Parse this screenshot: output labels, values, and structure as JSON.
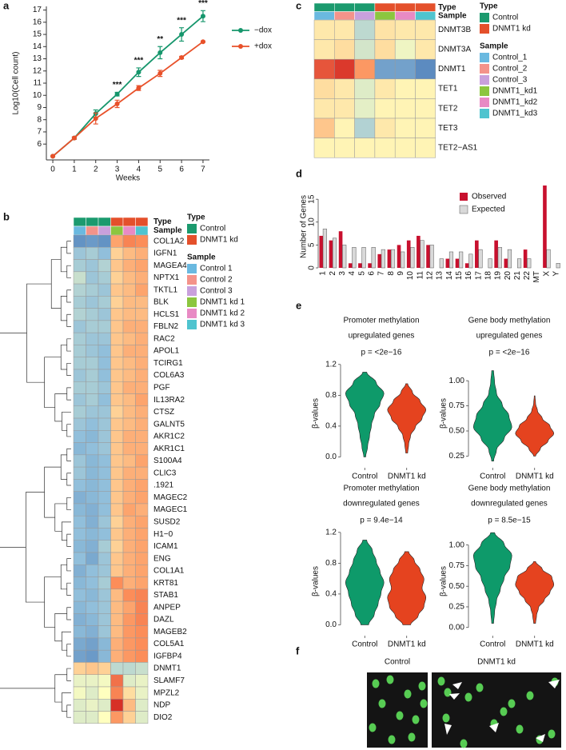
{
  "chart_data": [
    {
      "type": "line",
      "label": "a",
      "ylabel": "Log10(Cell count)",
      "xlabel": "Weeks",
      "x": [
        0,
        1,
        2,
        3,
        4,
        5,
        6,
        7
      ],
      "xlim": [
        -0.3,
        7.3
      ],
      "xticks": [
        0,
        1,
        2,
        3,
        4,
        5,
        6,
        7
      ],
      "ylim": [
        4.7,
        17.3
      ],
      "yticks": [
        6,
        7,
        8,
        9,
        10,
        11,
        12,
        13,
        14,
        15,
        16,
        17
      ],
      "series": [
        {
          "name": "−dox",
          "color": "#16966c",
          "values": [
            5.0,
            6.5,
            8.5,
            10.1,
            11.9,
            13.5,
            15.0,
            16.5
          ],
          "errors": [
            0,
            0.1,
            0.3,
            0.15,
            0.35,
            0.5,
            0.55,
            0.45
          ]
        },
        {
          "name": "+dox",
          "color": "#e8512a",
          "values": [
            5.0,
            6.5,
            8.1,
            9.3,
            10.6,
            11.8,
            13.1,
            14.4
          ],
          "errors": [
            0,
            0.1,
            0.45,
            0.3,
            0.2,
            0.25,
            0.1,
            0.05
          ]
        }
      ],
      "annotations": [
        {
          "x": 3,
          "text": "***"
        },
        {
          "x": 4,
          "text": "***"
        },
        {
          "x": 5,
          "text": "**"
        },
        {
          "x": 6,
          "text": "***"
        },
        {
          "x": 7,
          "text": "***"
        }
      ]
    },
    {
      "type": "heatmap",
      "label": "b",
      "annotation_titles": [
        "Type",
        "Sample"
      ],
      "types": [
        {
          "name": "Control",
          "color": "#1b9a6e"
        },
        {
          "name": "DNMT1 kd",
          "color": "#e4502b"
        }
      ],
      "samples": [
        {
          "name": "Control 1",
          "color": "#6ab9e0"
        },
        {
          "name": "Control 2",
          "color": "#f4938a"
        },
        {
          "name": "Control 3",
          "color": "#c9a0dc"
        },
        {
          "name": "DNMT1 kd 1",
          "color": "#8cc63f"
        },
        {
          "name": "DNMT1 kd 2",
          "color": "#e88ac4"
        },
        {
          "name": "DNMT1 kd 3",
          "color": "#4fc4cf"
        }
      ],
      "genes": [
        "COL1A2",
        "IGFN1",
        "MAGEA4",
        "NPTX1",
        "TKTL1",
        "BLK",
        "HCLS1",
        "FBLN2",
        "RAC2",
        "APOL1",
        "TCIRG1",
        "COL6A3",
        "PGF",
        "IL13RA2",
        "CTSZ",
        "GALNT5",
        "AKR1C2",
        "AKR1C1",
        "S100A4",
        "CLIC3",
        ".1921",
        "MAGEC2",
        "MAGEC1",
        "SUSD2",
        "H1−0",
        "ICAM1",
        "ENG",
        "COL1A1",
        "KRT81",
        "STAB1",
        "ANPEP",
        "DAZL",
        "MAGEB2",
        "COL5A1",
        "IGFBP4",
        "DNMT1",
        "SLAMF7",
        "MPZL2",
        "NDP",
        "DIO2"
      ],
      "values": [
        [
          -1.6,
          -1.5,
          -1.6,
          0.8,
          1.1,
          1.0
        ],
        [
          -0.9,
          -0.8,
          -1.0,
          0.4,
          0.6,
          0.7
        ],
        [
          -0.8,
          -0.9,
          -0.7,
          0.5,
          0.7,
          0.8
        ],
        [
          -0.5,
          -0.9,
          -0.8,
          0.4,
          0.6,
          0.7
        ],
        [
          -0.7,
          -0.8,
          -0.9,
          0.5,
          0.6,
          0.8
        ],
        [
          -0.8,
          -0.9,
          -0.8,
          0.4,
          0.6,
          0.6
        ],
        [
          -0.7,
          -0.8,
          -0.9,
          0.5,
          0.6,
          0.6
        ],
        [
          -0.9,
          -0.8,
          -0.8,
          0.5,
          0.7,
          0.7
        ],
        [
          -0.8,
          -0.9,
          -0.9,
          0.5,
          0.6,
          0.7
        ],
        [
          -0.8,
          -0.9,
          -1.0,
          0.5,
          0.7,
          0.7
        ],
        [
          -0.8,
          -0.8,
          -1.0,
          0.5,
          0.6,
          0.7
        ],
        [
          -0.9,
          -0.8,
          -1.0,
          0.5,
          0.6,
          0.7
        ],
        [
          -0.8,
          -0.8,
          -0.9,
          0.5,
          0.7,
          0.7
        ],
        [
          -0.9,
          -0.8,
          -1.0,
          0.5,
          0.6,
          0.8
        ],
        [
          -0.8,
          -0.9,
          -0.9,
          0.4,
          0.6,
          0.7
        ],
        [
          -0.9,
          -1.0,
          -0.9,
          0.5,
          0.6,
          0.7
        ],
        [
          -1.0,
          -1.1,
          -0.9,
          0.5,
          0.7,
          0.7
        ],
        [
          -1.1,
          -1.0,
          -0.9,
          0.5,
          0.7,
          0.7
        ],
        [
          -0.9,
          -1.1,
          -1.0,
          0.5,
          0.6,
          0.8
        ],
        [
          -0.9,
          -1.1,
          -1.0,
          0.5,
          0.7,
          0.7
        ],
        [
          -1.0,
          -1.1,
          -1.0,
          0.5,
          0.7,
          0.8
        ],
        [
          -1.2,
          -1.1,
          -1.0,
          0.5,
          0.7,
          0.8
        ],
        [
          -1.1,
          -1.2,
          -1.0,
          0.5,
          0.8,
          0.7
        ],
        [
          -1.0,
          -1.2,
          -0.9,
          0.4,
          0.7,
          0.8
        ],
        [
          -1.0,
          -1.1,
          -1.0,
          0.5,
          0.7,
          0.8
        ],
        [
          -1.1,
          -1.2,
          -0.8,
          0.4,
          0.7,
          0.8
        ],
        [
          -1.0,
          -1.3,
          -0.9,
          0.5,
          0.7,
          0.8
        ],
        [
          -1.2,
          -1.0,
          -0.9,
          0.5,
          0.7,
          0.8
        ],
        [
          -1.1,
          -1.0,
          -0.8,
          1.0,
          0.7,
          0.8
        ],
        [
          -1.0,
          -1.1,
          -0.9,
          0.6,
          1.0,
          1.1
        ],
        [
          -1.1,
          -1.0,
          -0.9,
          0.6,
          0.8,
          1.1
        ],
        [
          -1.2,
          -1.1,
          -0.9,
          0.6,
          0.9,
          1.1
        ],
        [
          -1.1,
          -1.2,
          -0.9,
          0.6,
          0.9,
          1.0
        ],
        [
          -1.3,
          -1.4,
          -1.1,
          0.7,
          0.9,
          1.0
        ],
        [
          -1.4,
          -1.5,
          -1.1,
          0.7,
          0.9,
          1.0
        ],
        [
          0.4,
          0.5,
          0.4,
          -0.6,
          -0.6,
          -0.5
        ],
        [
          -0.2,
          -0.2,
          -0.1,
          1.3,
          -0.3,
          -0.2
        ],
        [
          -0.1,
          -0.3,
          0.0,
          1.1,
          0.3,
          -0.2
        ],
        [
          -0.3,
          -0.2,
          -0.3,
          2.0,
          0.6,
          -0.3
        ],
        [
          -0.3,
          -0.3,
          0.0,
          0.9,
          0.4,
          -0.3
        ]
      ],
      "highlight": {
        "row": 35,
        "color": "#e0301e"
      },
      "dendrogram": true
    },
    {
      "type": "heatmap",
      "label": "c",
      "annotation_titles": [
        "Type",
        "Sample"
      ],
      "types": [
        {
          "name": "Control",
          "color": "#1b9a6e"
        },
        {
          "name": "DNMT1 kd",
          "color": "#e4502b"
        }
      ],
      "samples": [
        {
          "name": "Control_1",
          "color": "#6ab9e0"
        },
        {
          "name": "Control_2",
          "color": "#f4938a"
        },
        {
          "name": "Control_3",
          "color": "#c9a0dc"
        },
        {
          "name": "DNMT1_kd1",
          "color": "#8cc63f"
        },
        {
          "name": "DNMT1_kd2",
          "color": "#e88ac4"
        },
        {
          "name": "DNMT1_kd3",
          "color": "#4fc4cf"
        }
      ],
      "genes": [
        "DNMT3B",
        "DNMT3A",
        "DNMT1",
        "TET1",
        "TET2",
        "TET3",
        "TET2−AS1"
      ],
      "values": [
        [
          0.2,
          0.2,
          -0.6,
          0.25,
          0.2,
          0.2
        ],
        [
          0.2,
          0.3,
          -0.4,
          0.3,
          -0.15,
          0.2
        ],
        [
          1.6,
          1.9,
          0.9,
          -1.4,
          -1.4,
          -1.7
        ],
        [
          0.3,
          0.2,
          -0.3,
          0.2,
          0.1,
          0.1
        ],
        [
          0.2,
          0.2,
          -0.25,
          0.1,
          0.1,
          0.1
        ],
        [
          0.5,
          0.1,
          -0.7,
          0.2,
          0.1,
          0.1
        ],
        [
          0.1,
          0.1,
          0.1,
          0.1,
          0.1,
          0.1
        ]
      ],
      "dendrogram": false
    },
    {
      "type": "bar",
      "label": "d",
      "ylabel": "Number of Genes",
      "categories": [
        "1",
        "2",
        "3",
        "4",
        "5",
        "6",
        "7",
        "8",
        "9",
        "10",
        "11",
        "12",
        "13",
        "14",
        "15",
        "16",
        "17",
        "18",
        "19",
        "20",
        "21",
        "22",
        "MT",
        "X",
        "Y"
      ],
      "series": [
        {
          "name": "Observed",
          "color": "#c8102e",
          "values": [
            7,
            6,
            8,
            1,
            1,
            1,
            3,
            4,
            5,
            6,
            7,
            5,
            0,
            2,
            2,
            1,
            6,
            0,
            6,
            2,
            0,
            4,
            0,
            18,
            0
          ]
        },
        {
          "name": "Expected",
          "color": "#d9d9d9",
          "values": [
            8.5,
            6.5,
            5,
            4.5,
            4.5,
            4.5,
            4,
            4,
            3.5,
            4.5,
            6,
            5,
            2,
            3.5,
            3.5,
            3,
            4,
            2,
            4.5,
            4,
            2,
            2,
            0,
            4,
            1
          ]
        }
      ],
      "ylim": [
        0,
        18
      ],
      "yticks": [
        0,
        5,
        10,
        15
      ],
      "legend": "upper right"
    },
    {
      "type": "violin",
      "label": "e",
      "panels": [
        {
          "title": [
            "Promoter methylation",
            "upregulated genes"
          ],
          "p": "p = <2e−16",
          "ylabel": "β-values",
          "categories": [
            "Control",
            "DNMT1 kd"
          ],
          "ylim": [
            -0.12,
            1.25
          ],
          "yticks": [
            {
              "value": 0,
              "label": "0.0"
            },
            {
              "value": 0.4,
              "label": "0.4"
            },
            {
              "value": 0.8,
              "label": "0.8"
            },
            {
              "value": 1.2,
              "label": "1.2"
            }
          ],
          "violins": [
            {
              "color": "#0e9a6a",
              "range": [
                0.0,
                1.1
              ],
              "density": [
                0.05,
                0.15,
                0.25,
                0.35,
                0.5,
                0.8,
                1.0,
                0.6,
                0.1
              ]
            },
            {
              "color": "#e5431f",
              "range": [
                0.05,
                0.95
              ],
              "density": [
                0.05,
                0.1,
                0.2,
                0.45,
                0.8,
                1.0,
                0.7,
                0.3,
                0.05
              ]
            }
          ]
        },
        {
          "title": [
            "Gene body methylation",
            "upregulated genes"
          ],
          "p": "p = <2e−16",
          "ylabel": "β-values",
          "categories": [
            "Control",
            "DNMT1 kd"
          ],
          "ylim": [
            0.15,
            1.2
          ],
          "yticks": [
            {
              "value": 0.25,
              "label": "0.25"
            },
            {
              "value": 0.5,
              "label": "0.50"
            },
            {
              "value": 0.75,
              "label": "0.75"
            },
            {
              "value": 1,
              "label": "1.00"
            }
          ],
          "violins": [
            {
              "color": "#0e9a6a",
              "range": [
                0.2,
                1.1
              ],
              "density": [
                0.05,
                0.2,
                0.6,
                1.0,
                0.85,
                0.5,
                0.2,
                0.1,
                0.05
              ]
            },
            {
              "color": "#e5431f",
              "range": [
                0.25,
                0.85
              ],
              "density": [
                0.05,
                0.3,
                0.7,
                1.0,
                0.8,
                0.4,
                0.15,
                0.05,
                0.02
              ]
            }
          ]
        },
        {
          "title": [
            "Promoter methylation",
            "downregulated genes"
          ],
          "p": "p = 9.4e−14",
          "ylabel": "β-values",
          "categories": [
            "Control",
            "DNMT1 kd"
          ],
          "ylim": [
            -0.12,
            1.25
          ],
          "yticks": [
            {
              "value": 0,
              "label": "0.0"
            },
            {
              "value": 0.4,
              "label": "0.4"
            },
            {
              "value": 0.8,
              "label": "0.8"
            },
            {
              "value": 1.2,
              "label": "1.2"
            }
          ],
          "violins": [
            {
              "color": "#0e9a6a",
              "range": [
                0.0,
                1.1
              ],
              "density": [
                0.2,
                0.5,
                0.7,
                0.85,
                1.0,
                0.8,
                0.6,
                0.4,
                0.1
              ]
            },
            {
              "color": "#e5431f",
              "range": [
                0.0,
                0.95
              ],
              "density": [
                0.2,
                0.6,
                0.9,
                1.0,
                0.8,
                0.9,
                0.7,
                0.4,
                0.1
              ]
            }
          ]
        },
        {
          "title": [
            "Gene body methylation",
            "downregulated genes"
          ],
          "p": "p = 8.5e−15",
          "ylabel": "β-values",
          "categories": [
            "Control",
            "DNMT1 kd"
          ],
          "ylim": [
            -0.08,
            1.2
          ],
          "yticks": [
            {
              "value": 0,
              "label": "0.00"
            },
            {
              "value": 0.25,
              "label": "0.25"
            },
            {
              "value": 0.5,
              "label": "0.50"
            },
            {
              "value": 0.75,
              "label": "0.75"
            },
            {
              "value": 1,
              "label": "1.00"
            }
          ],
          "violins": [
            {
              "color": "#0e9a6a",
              "range": [
                0.05,
                1.15
              ],
              "density": [
                0.05,
                0.1,
                0.2,
                0.4,
                0.6,
                0.9,
                1.0,
                0.6,
                0.1
              ]
            },
            {
              "color": "#e5431f",
              "range": [
                0.05,
                0.8
              ],
              "density": [
                0.05,
                0.1,
                0.2,
                0.5,
                0.8,
                1.0,
                0.9,
                0.4,
                0.05
              ]
            }
          ]
        }
      ]
    },
    {
      "type": "image",
      "label": "f",
      "panels": [
        "Control",
        "DNMT1 kd"
      ]
    }
  ]
}
